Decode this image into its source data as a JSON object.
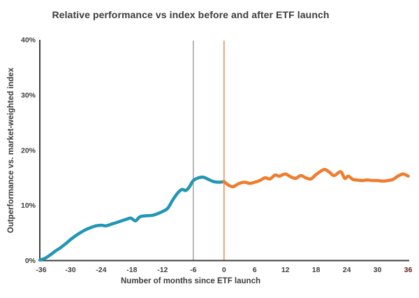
{
  "title": "Relative performance vs index before and after ETF launch",
  "colors": {
    "background": "#ffffff",
    "title_text": "#3c3c3c",
    "axis": "#3f3f3f",
    "tick_text": "#3f3f3f",
    "last_x_tick_text": "#5f241c",
    "before_line": "#2396b4",
    "after_line": "#ef7d2e",
    "vline_pre_launch": "#8a8a8a",
    "vline_launch": "#f0854a"
  },
  "chart_data": {
    "type": "line",
    "title": "Relative performance vs index before and after ETF launch",
    "xlabel": "Number of months since ETF launch",
    "ylabel": "Outperformance vs. market-weighted index",
    "xlim": [
      -36,
      36
    ],
    "ylim": [
      0,
      40
    ],
    "x_ticks": [
      -36,
      -30,
      -24,
      -18,
      -12,
      -6,
      0,
      6,
      12,
      18,
      24,
      30,
      36
    ],
    "y_ticks": [
      0,
      10,
      20,
      30,
      40
    ],
    "y_tick_suffix": "%",
    "grid": false,
    "legend": "none",
    "vlines": [
      {
        "x": -6,
        "name": "pre-launch-marker",
        "color_key": "vline_pre_launch",
        "width": 1.2
      },
      {
        "x": 0,
        "name": "launch-marker",
        "color_key": "vline_launch",
        "width": 1.5
      }
    ],
    "series": [
      {
        "name": "before ETF launch",
        "color_key": "before_line",
        "points": [
          [
            -36,
            0.1
          ],
          [
            -35,
            0.4
          ],
          [
            -34,
            1.0
          ],
          [
            -33,
            1.7
          ],
          [
            -32,
            2.3
          ],
          [
            -31,
            3.0
          ],
          [
            -30,
            3.8
          ],
          [
            -29,
            4.5
          ],
          [
            -28,
            5.1
          ],
          [
            -27,
            5.6
          ],
          [
            -26,
            6.0
          ],
          [
            -25,
            6.3
          ],
          [
            -24,
            6.4
          ],
          [
            -23,
            6.3
          ],
          [
            -22,
            6.6
          ],
          [
            -21,
            6.9
          ],
          [
            -20,
            7.2
          ],
          [
            -19,
            7.5
          ],
          [
            -18.2,
            7.7
          ],
          [
            -17.3,
            7.2
          ],
          [
            -16.5,
            7.9
          ],
          [
            -15.5,
            8.1
          ],
          [
            -14,
            8.2
          ],
          [
            -13,
            8.5
          ],
          [
            -12,
            8.9
          ],
          [
            -11,
            9.5
          ],
          [
            -10,
            11.0
          ],
          [
            -9,
            12.3
          ],
          [
            -8.2,
            12.9
          ],
          [
            -7.5,
            12.7
          ],
          [
            -6.8,
            13.3
          ],
          [
            -6,
            14.5
          ],
          [
            -5,
            15.0
          ],
          [
            -4,
            15.1
          ],
          [
            -3,
            14.7
          ],
          [
            -2,
            14.3
          ],
          [
            -1,
            14.2
          ],
          [
            0,
            14.3
          ]
        ]
      },
      {
        "name": "after ETF launch",
        "color_key": "after_line",
        "points": [
          [
            0,
            14.3
          ],
          [
            1,
            13.6
          ],
          [
            1.8,
            13.4
          ],
          [
            3,
            14.0
          ],
          [
            4,
            14.2
          ],
          [
            5,
            14.0
          ],
          [
            6,
            14.2
          ],
          [
            7,
            14.5
          ],
          [
            8,
            15.0
          ],
          [
            9,
            14.8
          ],
          [
            10,
            15.5
          ],
          [
            10.8,
            15.3
          ],
          [
            12,
            15.7
          ],
          [
            13,
            15.2
          ],
          [
            14,
            14.9
          ],
          [
            15,
            15.4
          ],
          [
            16,
            15.0
          ],
          [
            17,
            14.8
          ],
          [
            18,
            15.6
          ],
          [
            19.5,
            16.5
          ],
          [
            20.5,
            16.1
          ],
          [
            21.5,
            15.4
          ],
          [
            22.8,
            16.1
          ],
          [
            23.6,
            14.9
          ],
          [
            24.3,
            15.3
          ],
          [
            25.2,
            14.7
          ],
          [
            26,
            14.6
          ],
          [
            27,
            14.5
          ],
          [
            28,
            14.6
          ],
          [
            29,
            14.5
          ],
          [
            30,
            14.5
          ],
          [
            31,
            14.4
          ],
          [
            32,
            14.5
          ],
          [
            33,
            14.7
          ],
          [
            34,
            15.3
          ],
          [
            35,
            15.7
          ],
          [
            36,
            15.3
          ]
        ]
      }
    ]
  }
}
